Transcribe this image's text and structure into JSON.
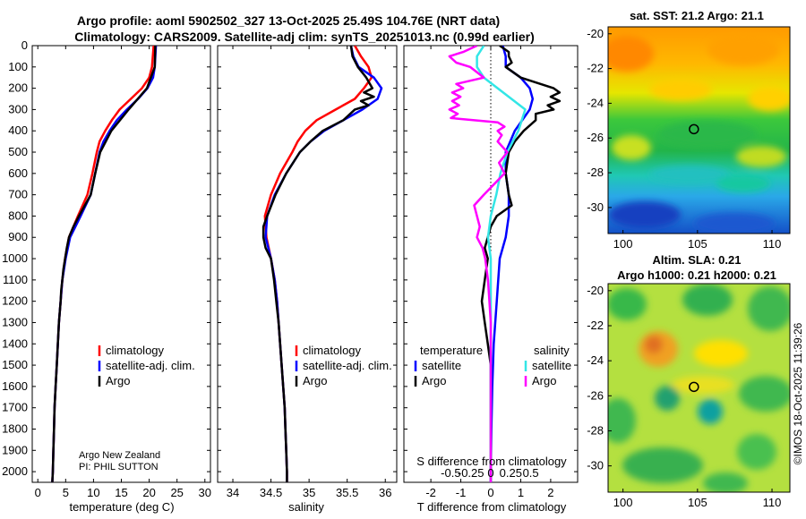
{
  "titles": {
    "line1": "Argo profile: aoml 5902502_327 13-Oct-2025 25.49S 104.76E (NRT data)",
    "line2": "Climatology: CARS2009. Satellite-adj clim: synTS_20251013.nc (0.99d earlier)"
  },
  "depth_ticks": [
    0,
    100,
    200,
    300,
    400,
    500,
    600,
    700,
    800,
    900,
    1000,
    1100,
    1200,
    1300,
    1400,
    1500,
    1600,
    1700,
    1800,
    1900,
    2000
  ],
  "colors": {
    "climatology": "#ff0000",
    "satellite": "#0000ff",
    "argo": "#000000",
    "sat_salinity": "#33e6e6",
    "argo_salinity": "#ff00ff"
  },
  "chart_data": [
    {
      "type": "line",
      "id": "temperature",
      "xlabel": "temperature (deg C)",
      "xlim": [
        -1,
        31
      ],
      "ylim": [
        2050,
        0
      ],
      "xticks": [
        0,
        5,
        10,
        15,
        20,
        25,
        30
      ],
      "legend": {
        "position": "bottom-right",
        "entries": [
          "climatology",
          "satellite-adj. clim.",
          "Argo"
        ]
      },
      "annotation": [
        "Argo New Zealand",
        "PI: PHIL SUTTON"
      ],
      "series": [
        {
          "name": "climatology",
          "depth": [
            0,
            100,
            150,
            200,
            250,
            300,
            350,
            400,
            450,
            500,
            600,
            700,
            800,
            900,
            1000,
            1100,
            1200,
            1300,
            1400,
            1500,
            1600,
            1700,
            1800,
            1900,
            2000,
            2050
          ],
          "values": [
            20.8,
            20.5,
            20.0,
            18.7,
            16.7,
            14.7,
            13.3,
            12.1,
            11.1,
            10.6,
            9.8,
            8.9,
            7.2,
            5.6,
            4.9,
            4.4,
            4.1,
            3.8,
            3.6,
            3.4,
            3.2,
            3.0,
            2.9,
            2.8,
            2.7,
            2.6
          ]
        },
        {
          "name": "satellite-adj. clim.",
          "depth": [
            0,
            100,
            150,
            200,
            250,
            300,
            350,
            400,
            450,
            500,
            600,
            700,
            800,
            900,
            1000,
            1100,
            1200,
            1300,
            1400,
            1500,
            1600,
            1700,
            1800,
            1900,
            2000,
            2050
          ],
          "values": [
            21.2,
            21.0,
            20.7,
            19.7,
            18.0,
            16.0,
            14.2,
            12.9,
            11.8,
            11.1,
            10.3,
            9.5,
            7.7,
            5.8,
            5.0,
            4.4,
            4.1,
            3.8,
            3.6,
            3.4,
            3.2,
            3.0,
            2.9,
            2.8,
            2.7,
            2.6
          ]
        },
        {
          "name": "Argo",
          "depth": [
            0,
            100,
            200,
            300,
            400,
            500,
            600,
            700,
            800,
            850,
            900,
            950,
            1000,
            1050,
            1100,
            1150,
            1200,
            1300,
            1400,
            1500,
            1600,
            1700,
            1800,
            1900,
            2000,
            2050
          ],
          "values": [
            21.1,
            21.0,
            19.6,
            16.3,
            13.2,
            11.2,
            10.3,
            9.5,
            7.4,
            6.4,
            5.6,
            5.2,
            4.9,
            4.6,
            4.4,
            4.2,
            4.1,
            3.8,
            3.6,
            3.4,
            3.2,
            3.0,
            2.9,
            2.8,
            2.7,
            2.6
          ]
        }
      ]
    },
    {
      "type": "line",
      "id": "salinity",
      "xlabel": "salinity",
      "xlim": [
        33.8,
        36.15
      ],
      "ylim": [
        2050,
        0
      ],
      "xticks": [
        34,
        34.5,
        35,
        35.5,
        36
      ],
      "xtick_labels": [
        "34",
        "34.5",
        "35",
        "35.5",
        "36"
      ],
      "legend": {
        "position": "bottom-right",
        "entries": [
          "climatology",
          "satellite-adj. clim.",
          "Argo"
        ]
      },
      "series": [
        {
          "name": "climatology",
          "depth": [
            0,
            50,
            100,
            150,
            200,
            250,
            300,
            350,
            400,
            450,
            500,
            600,
            700,
            800,
            900,
            1000,
            1100,
            1200,
            1300,
            1400,
            1500,
            1600,
            1700,
            1800,
            1900,
            2000,
            2050
          ],
          "values": [
            35.6,
            35.68,
            35.78,
            35.82,
            35.72,
            35.6,
            35.35,
            35.1,
            34.95,
            34.85,
            34.78,
            34.62,
            34.5,
            34.42,
            34.44,
            34.5,
            34.55,
            34.58,
            34.6,
            34.62,
            34.64,
            34.66,
            34.68,
            34.69,
            34.7,
            34.71,
            34.71
          ]
        },
        {
          "name": "satellite-adj. clim.",
          "depth": [
            0,
            50,
            100,
            150,
            200,
            250,
            300,
            350,
            400,
            450,
            500,
            600,
            700,
            800,
            900,
            1000,
            1100,
            1200,
            1300,
            1400,
            1500,
            1600,
            1700,
            1800,
            1900,
            2000,
            2050
          ],
          "values": [
            35.55,
            35.58,
            35.65,
            35.85,
            35.95,
            35.9,
            35.7,
            35.45,
            35.2,
            35.02,
            34.88,
            34.7,
            34.55,
            34.45,
            34.43,
            34.5,
            34.55,
            34.58,
            34.6,
            34.62,
            34.64,
            34.66,
            34.68,
            34.69,
            34.7,
            34.71,
            34.71
          ]
        },
        {
          "name": "Argo",
          "depth": [
            0,
            50,
            100,
            150,
            200,
            220,
            240,
            260,
            280,
            300,
            350,
            400,
            450,
            500,
            600,
            700,
            800,
            850,
            900,
            950,
            1000,
            1100,
            1200,
            1300,
            1400,
            1500,
            1600,
            1700,
            1800,
            1900,
            2000,
            2050
          ],
          "values": [
            35.55,
            35.57,
            35.64,
            35.75,
            35.83,
            35.72,
            35.85,
            35.68,
            35.78,
            35.6,
            35.45,
            35.18,
            35.02,
            34.88,
            34.7,
            34.56,
            34.45,
            34.4,
            34.4,
            34.43,
            34.5,
            34.54,
            34.57,
            34.6,
            34.62,
            34.64,
            34.66,
            34.68,
            34.69,
            34.7,
            34.71,
            34.71
          ]
        }
      ]
    },
    {
      "type": "line",
      "id": "difference",
      "xlabel": "T difference from climatology",
      "xlabel_top": "S difference from climatology",
      "xlim": [
        -2.9,
        2.9
      ],
      "ylim": [
        2050,
        0
      ],
      "xticks": [
        -2,
        -1,
        0,
        1,
        2
      ],
      "s_ticks": [
        -0.5,
        -0.25,
        0,
        0.25,
        0.5
      ],
      "s_tick_labels": [
        "-0.5",
        "-0.25",
        "0",
        "0.25",
        "0.5"
      ],
      "legend": {
        "position": "bottom",
        "temperature_heading": "temperature",
        "salinity_heading": "salinity",
        "entries_t": [
          "satellite",
          "Argo"
        ],
        "entries_s": [
          "satellite",
          "Argo"
        ]
      },
      "series": [
        {
          "name": "temperature satellite",
          "depth": [
            0,
            50,
            100,
            150,
            200,
            250,
            300,
            400,
            500,
            600,
            700,
            800,
            900,
            1000,
            1200,
            1400,
            1600,
            1800,
            2000,
            2050
          ],
          "values": [
            0.4,
            0.5,
            0.5,
            1.0,
            1.3,
            1.4,
            1.3,
            0.8,
            0.5,
            0.5,
            0.6,
            0.6,
            0.5,
            0.3,
            0.2,
            0.1,
            0.05,
            0.02,
            0,
            0
          ]
        },
        {
          "name": "temperature Argo",
          "depth": [
            0,
            30,
            50,
            80,
            100,
            150,
            200,
            220,
            240,
            260,
            280,
            300,
            320,
            350,
            400,
            450,
            500,
            600,
            700,
            750,
            800,
            850,
            900,
            950,
            1000,
            1100,
            1200,
            1300,
            1400,
            1500,
            1600,
            1800,
            2000,
            2050
          ],
          "values": [
            0.3,
            0.6,
            0.6,
            0.7,
            0.5,
            1.0,
            2.1,
            2.3,
            2.0,
            2.3,
            1.9,
            2.1,
            1.5,
            1.5,
            1.1,
            0.8,
            0.6,
            0.5,
            0.6,
            0.7,
            0.2,
            0.0,
            -0.1,
            -0.2,
            -0.1,
            -0.2,
            -0.3,
            -0.2,
            -0.1,
            0.0,
            0.0,
            0.0,
            0.0,
            0.0
          ]
        },
        {
          "name": "salinity satellite",
          "depth": [
            0,
            50,
            100,
            150,
            200,
            250,
            300,
            400,
            500,
            600,
            700,
            800,
            900,
            1000,
            1200,
            1400,
            1600,
            1800,
            2000,
            2050
          ],
          "values": [
            -0.05,
            -0.1,
            -0.1,
            -0.05,
            0.05,
            0.15,
            0.25,
            0.2,
            0.12,
            0.07,
            0.04,
            0.0,
            -0.02,
            0.0,
            0.0,
            0.0,
            0.0,
            0.0,
            0.0,
            0.0
          ]
        },
        {
          "name": "salinity Argo",
          "depth": [
            0,
            30,
            50,
            80,
            100,
            150,
            180,
            200,
            220,
            240,
            260,
            280,
            300,
            320,
            340,
            360,
            380,
            400,
            420,
            450,
            500,
            550,
            600,
            700,
            750,
            800,
            850,
            900,
            950,
            1000,
            1100,
            1200,
            1300,
            1400,
            1500,
            1600,
            1800,
            2000,
            2050
          ],
          "values": [
            -0.1,
            -0.2,
            -0.3,
            -0.25,
            -0.15,
            -0.05,
            -0.25,
            -0.2,
            -0.28,
            -0.22,
            -0.28,
            -0.23,
            -0.3,
            -0.24,
            -0.29,
            0.05,
            0.1,
            0.05,
            0.08,
            0.05,
            0.12,
            0.06,
            0.1,
            -0.05,
            -0.12,
            -0.1,
            -0.08,
            -0.1,
            -0.06,
            -0.04,
            -0.02,
            -0.01,
            0.0,
            0.0,
            0.0,
            0.0,
            0.0,
            0.0,
            0.0
          ]
        }
      ]
    },
    {
      "type": "heatmap",
      "id": "sst_map",
      "title": "sat. SST: 21.2 Argo: 21.1",
      "xlim": [
        99,
        111.2
      ],
      "ylim": [
        -31.5,
        -19.6
      ],
      "xticks": [
        100,
        105,
        110
      ],
      "yticks": [
        -20,
        -22,
        -24,
        -26,
        -28,
        -30
      ],
      "marker": {
        "lon": 104.76,
        "lat": -25.49
      }
    },
    {
      "type": "heatmap",
      "id": "sla_map",
      "title1": "Altim. SLA: 0.21",
      "title2": "Argo h1000: 0.21 h2000: 0.21",
      "xlim": [
        99,
        111.2
      ],
      "ylim": [
        -31.5,
        -19.6
      ],
      "xticks": [
        100,
        105,
        110
      ],
      "yticks": [
        -20,
        -22,
        -24,
        -26,
        -28,
        -30
      ],
      "marker": {
        "lon": 104.76,
        "lat": -25.49
      }
    }
  ],
  "side_label": "©IMOS 18-Oct-2025 11:39:26"
}
